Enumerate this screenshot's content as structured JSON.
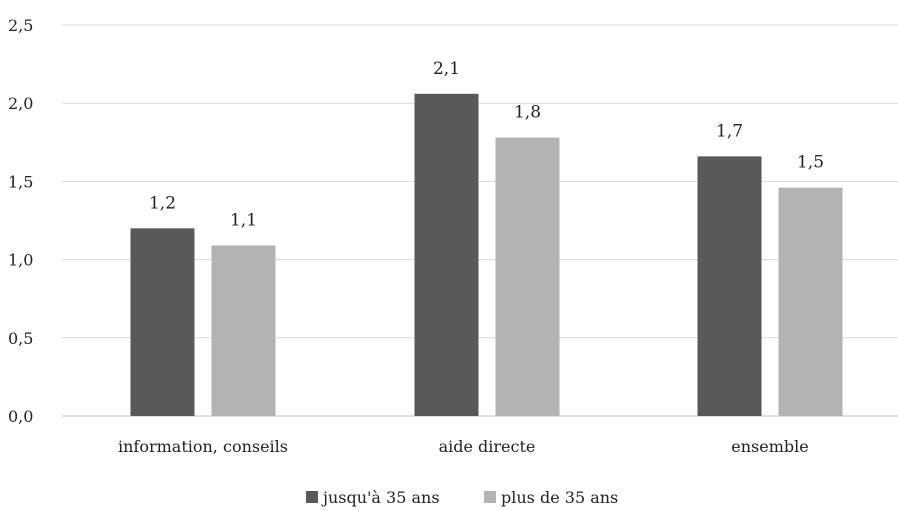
{
  "chart_data": {
    "type": "bar",
    "title": "",
    "xlabel": "",
    "ylabel": "",
    "categories": [
      "information, conseils",
      "aide directe",
      "ensemble"
    ],
    "series": [
      {
        "name": "jusqu'à 35 ans",
        "values": [
          1.2,
          2.06,
          1.66
        ],
        "labels": [
          "1,2",
          "2,1",
          "1,7"
        ],
        "color": "#595959"
      },
      {
        "name": "plus de 35 ans",
        "values": [
          1.09,
          1.78,
          1.46
        ],
        "labels": [
          "1,1",
          "1,8",
          "1,5"
        ],
        "color": "#b3b3b3"
      }
    ],
    "ylim": [
      0,
      2.5
    ],
    "yticks": [
      {
        "value": 0,
        "label": "0,0"
      },
      {
        "value": 0.5,
        "label": "0,5"
      },
      {
        "value": 1.0,
        "label": "1,0"
      },
      {
        "value": 1.5,
        "label": "1,5"
      },
      {
        "value": 2.0,
        "label": "2,0"
      },
      {
        "value": 2.5,
        "label": "2,5"
      }
    ],
    "grid": true,
    "legend_position": "bottom"
  }
}
